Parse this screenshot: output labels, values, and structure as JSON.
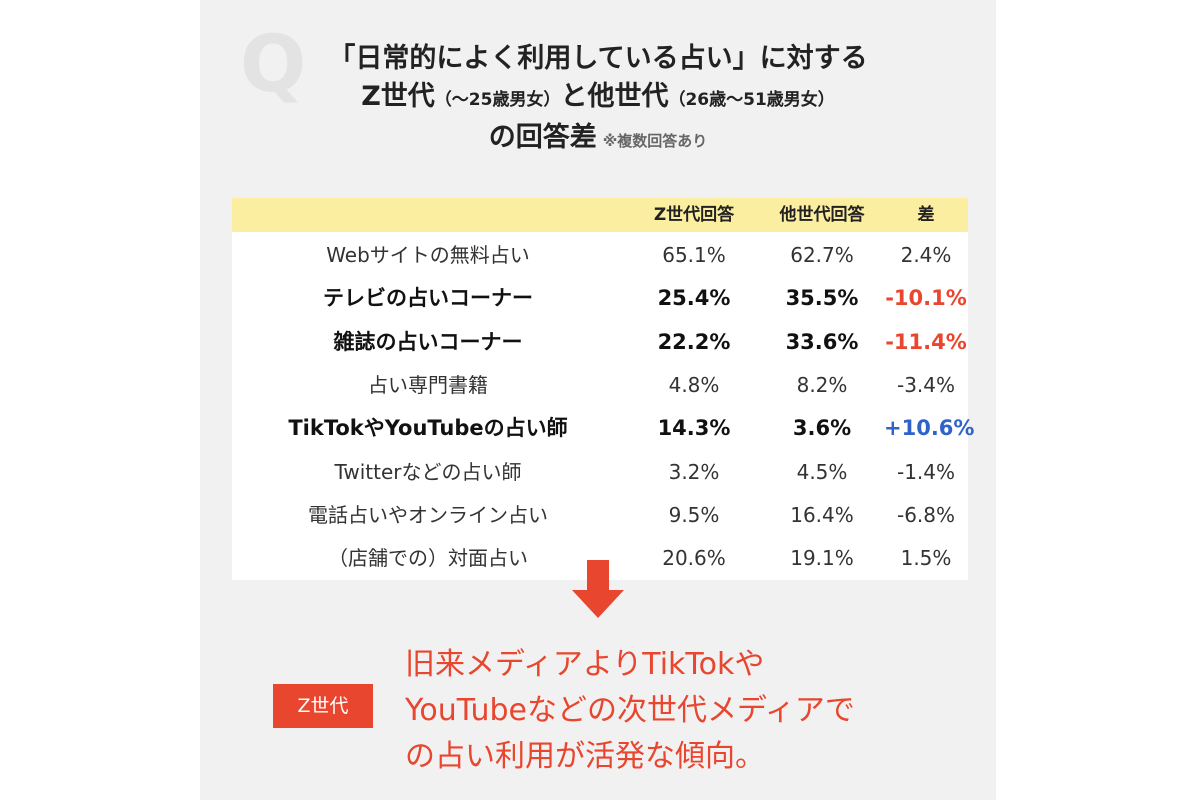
{
  "title": {
    "line1": "「日常的によく利用している占い」に対する",
    "line2_a": "Z世代",
    "line2_b": "（〜25歳男女）",
    "line2_c": "と他世代",
    "line2_d": "（26歳〜51歳男女）",
    "line3": "の回答差",
    "note": "※複数回答あり"
  },
  "table": {
    "headers": [
      "Z世代回答",
      "他世代回答",
      "差"
    ],
    "rows": [
      {
        "label": "Webサイトの無料占い",
        "z": "65.1%",
        "other": "62.7%",
        "diff": "2.4%",
        "bold": false,
        "diff_color": ""
      },
      {
        "label": "テレビの占いコーナー",
        "z": "25.4%",
        "other": "35.5%",
        "diff": "-10.1%",
        "bold": true,
        "diff_color": "red"
      },
      {
        "label": "雑誌の占いコーナー",
        "z": "22.2%",
        "other": "33.6%",
        "diff": "-11.4%",
        "bold": true,
        "diff_color": "red"
      },
      {
        "label": "占い専門書籍",
        "z": "4.8%",
        "other": "8.2%",
        "diff": "-3.4%",
        "bold": false,
        "diff_color": ""
      },
      {
        "label": "TikTokやYouTubeの占い師",
        "z": "14.3%",
        "other": "3.6%",
        "diff": "+10.6%",
        "bold": true,
        "diff_color": "blue"
      },
      {
        "label": "Twitterなどの占い師",
        "z": "3.2%",
        "other": "4.5%",
        "diff": "-1.4%",
        "bold": false,
        "diff_color": ""
      },
      {
        "label": "電話占いやオンライン占い",
        "z": "9.5%",
        "other": "16.4%",
        "diff": "-6.8%",
        "bold": false,
        "diff_color": ""
      },
      {
        "label": "（店舗での）対面占い",
        "z": "20.6%",
        "other": "19.1%",
        "diff": "1.5%",
        "bold": false,
        "diff_color": ""
      }
    ]
  },
  "conclusion": {
    "badge": "Z世代",
    "lines": [
      "旧来メディアよりTikTokや",
      "YouTubeなどの次世代メディアで",
      "の占い利用が活発な傾向。"
    ]
  },
  "colors": {
    "accent_red": "#e8462e",
    "accent_blue": "#2f63c9",
    "header_yellow": "#fbeea0"
  }
}
